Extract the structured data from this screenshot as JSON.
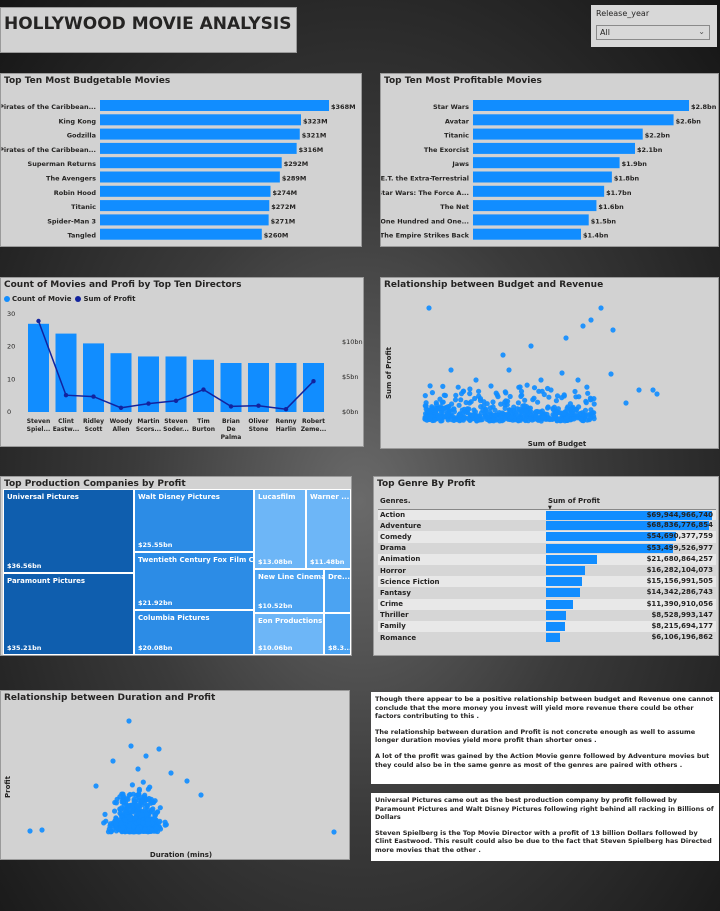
{
  "header": {
    "title": "HOLLYWOOD MOVIE ANALYSIS"
  },
  "slicer": {
    "label": "Release_year",
    "value": "All",
    "icon": "chevron-down-icon"
  },
  "colors": {
    "bar": "#118DFF",
    "line": "#12239E",
    "panel": "#d2d2d2",
    "treemap_dark": "#0F5EAE",
    "treemap_mid": "#2C8CE6",
    "treemap_light": "#4BA3F2",
    "treemap_lighter": "#6DB6F7"
  },
  "chart_data": [
    {
      "id": "budget",
      "type": "bar",
      "orientation": "horizontal",
      "title": "Top Ten Most Budgetable Movies",
      "categories": [
        "Pirates of the Caribbean...",
        "King Kong",
        "Godzilla",
        "Pirates of the Caribbean...",
        "Superman Returns",
        "The Avengers",
        "Robin Hood",
        "Titanic",
        "Spider-Man 3",
        "Tangled"
      ],
      "values": [
        368,
        323,
        321,
        316,
        292,
        289,
        274,
        272,
        271,
        260
      ],
      "labels": [
        "$368M",
        "$323M",
        "$321M",
        "$316M",
        "$292M",
        "$289M",
        "$274M",
        "$272M",
        "$271M",
        "$260M"
      ],
      "xlim": [
        0,
        368
      ]
    },
    {
      "id": "profit",
      "type": "bar",
      "orientation": "horizontal",
      "title": "Top Ten Most Profitable Movies",
      "categories": [
        "Star Wars",
        "Avatar",
        "Titanic",
        "The Exorcist",
        "Jaws",
        "E.T. the Extra-Terrestrial",
        "Star Wars: The Force A...",
        "The Net",
        "One Hundred and One...",
        "The Empire Strikes Back"
      ],
      "values": [
        2.8,
        2.6,
        2.2,
        2.1,
        1.9,
        1.8,
        1.7,
        1.6,
        1.5,
        1.4
      ],
      "labels": [
        "$2.8bn",
        "$2.6bn",
        "$2.2bn",
        "$2.1bn",
        "$1.9bn",
        "$1.8bn",
        "$1.7bn",
        "$1.6bn",
        "$1.5bn",
        "$1.4bn"
      ],
      "xlim": [
        0,
        2.8
      ]
    },
    {
      "id": "directors",
      "type": "bar",
      "title": "Count of Movies and Profi by Top Ten Directors",
      "legend": [
        "Count of Movie",
        "Sum of Profit"
      ],
      "categories": [
        [
          "Steven",
          "Spiel..."
        ],
        [
          "Clint",
          "Eastw..."
        ],
        [
          "Ridley",
          "Scott"
        ],
        [
          "Woody",
          "Allen"
        ],
        [
          "Martin",
          "Scors..."
        ],
        [
          "Steven",
          "Soder..."
        ],
        [
          "Tim",
          "Burton"
        ],
        [
          "Brian",
          "De",
          "Palma"
        ],
        [
          "Oliver",
          "Stone"
        ],
        [
          "Renny",
          "Harlin"
        ],
        [
          "Robert",
          "Zeme..."
        ]
      ],
      "series": [
        {
          "name": "Count of Movie",
          "type": "bar",
          "values": [
            27,
            24,
            21,
            18,
            17,
            17,
            16,
            15,
            15,
            15,
            15
          ]
        },
        {
          "name": "Sum of Profit",
          "type": "line",
          "values": [
            13.0,
            2.4,
            2.2,
            0.6,
            1.2,
            1.6,
            3.2,
            0.8,
            0.9,
            0.4,
            4.4
          ]
        }
      ],
      "ylim_left": [
        0,
        30
      ],
      "yticks_left": [
        "30",
        "20",
        "10",
        "0"
      ],
      "ylim_right": [
        0,
        14
      ],
      "yticks_right": [
        "$10bn",
        "$5bn",
        "$0bn"
      ]
    },
    {
      "id": "budrev",
      "type": "scatter",
      "title": "Relationship between Budget and Revenue",
      "xlabel": "Sum of Budget",
      "ylabel": "Sum of Profit"
    },
    {
      "id": "companies",
      "type": "treemap",
      "title": "Top Production Companies by Profit",
      "items": [
        {
          "name": "Universal Pictures",
          "value": "$36.56bn"
        },
        {
          "name": "Paramount Pictures",
          "value": "$35.21bn"
        },
        {
          "name": "Walt Disney Pictures",
          "value": "$25.55bn"
        },
        {
          "name": "Twentieth Century Fox Film Co...",
          "value": "$21.92bn"
        },
        {
          "name": "Columbia Pictures",
          "value": "$20.08bn"
        },
        {
          "name": "Lucasfilm",
          "value": "$13.08bn"
        },
        {
          "name": "Warner ...",
          "value": "$11.48bn"
        },
        {
          "name": "New Line Cinema",
          "value": "$10.52bn"
        },
        {
          "name": "Dre...",
          "value": ""
        },
        {
          "name": "Eon Productions",
          "value": "$10.06bn"
        },
        {
          "name": "",
          "value": "$8.3..."
        }
      ]
    },
    {
      "id": "genre",
      "type": "table",
      "title": "Top Genre By Profit",
      "columns": [
        "Genres.",
        "Sum of Profit"
      ],
      "rows": [
        {
          "genre": "Action",
          "profit": 69944966740,
          "label": "$69,944,966,740"
        },
        {
          "genre": "Adventure",
          "profit": 68836776854,
          "label": "$68,836,776,854"
        },
        {
          "genre": "Comedy",
          "profit": 54690377759,
          "label": "$54,690,377,759"
        },
        {
          "genre": "Drama",
          "profit": 53499526977,
          "label": "$53,499,526,977"
        },
        {
          "genre": "Animation",
          "profit": 21680864257,
          "label": "$21,680,864,257"
        },
        {
          "genre": "Horror",
          "profit": 16282104073,
          "label": "$16,282,104,073"
        },
        {
          "genre": "Science Fiction",
          "profit": 15156991505,
          "label": "$15,156,991,505"
        },
        {
          "genre": "Fantasy",
          "profit": 14342286743,
          "label": "$14,342,286,743"
        },
        {
          "genre": "Crime",
          "profit": 11390910056,
          "label": "$11,390,910,056"
        },
        {
          "genre": "Thriller",
          "profit": 8528993147,
          "label": "$8,528,993,147"
        },
        {
          "genre": "Family",
          "profit": 8215694177,
          "label": "$8,215,694,177"
        },
        {
          "genre": "Romance",
          "profit": 6106196862,
          "label": "$6,106,196,862"
        }
      ]
    },
    {
      "id": "duration",
      "type": "scatter",
      "title": "Relationship between Duration and Profit",
      "xlabel": "Duration (mins)",
      "ylabel": "Profit"
    }
  ],
  "notes": {
    "n1": "Though there appear to be a positive relationship between budget and Revenue one cannot conclude that the more money you invest will yield more revenue there could be other factors contributing to this .",
    "n2": "The relationship between duration and Profit is not concrete enough as well to assume longer duration movies yield more profit than shorter ones .",
    "n3": "A lot of the profit was gained by the Action Movie genre followed by Adventure movies but they could also be in the same genre as most of the genres are paired with others .",
    "n4": "Universal Pictures came out as the best production company by profit followed by Paramount Pictures and Walt Disney Pictures following right behind all racking in Billions of Dollars",
    "n5": "Steven Spielberg is  the Top Movie Director with a profit of 13 billion Dollars followed by Clint Eastwood. This result could also be due to the fact that Steven Spielberg has Directed more movies that the other ."
  }
}
